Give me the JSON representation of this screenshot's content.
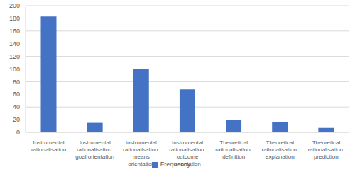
{
  "chart_data": {
    "type": "bar",
    "categories": [
      "Instrumental rationalisation",
      "Instrumental rationalisation: goal orientation",
      "Instrumental rationalisation: means orientation",
      "Instrumental rationalisation: outcome orientation",
      "Theoretical rationalisation: definition",
      "Theoretical rationalisation: explanation",
      "Theoretical rationalisation: prediction"
    ],
    "series": [
      {
        "name": "Frequency",
        "color": "#4472c4",
        "values": [
          183,
          15,
          100,
          68,
          20,
          16,
          7
        ]
      }
    ],
    "ylim": [
      0,
      200
    ],
    "yticks": [
      0,
      20,
      40,
      60,
      80,
      100,
      120,
      140,
      160,
      180,
      200
    ],
    "grid": true,
    "legend": "bottom"
  }
}
